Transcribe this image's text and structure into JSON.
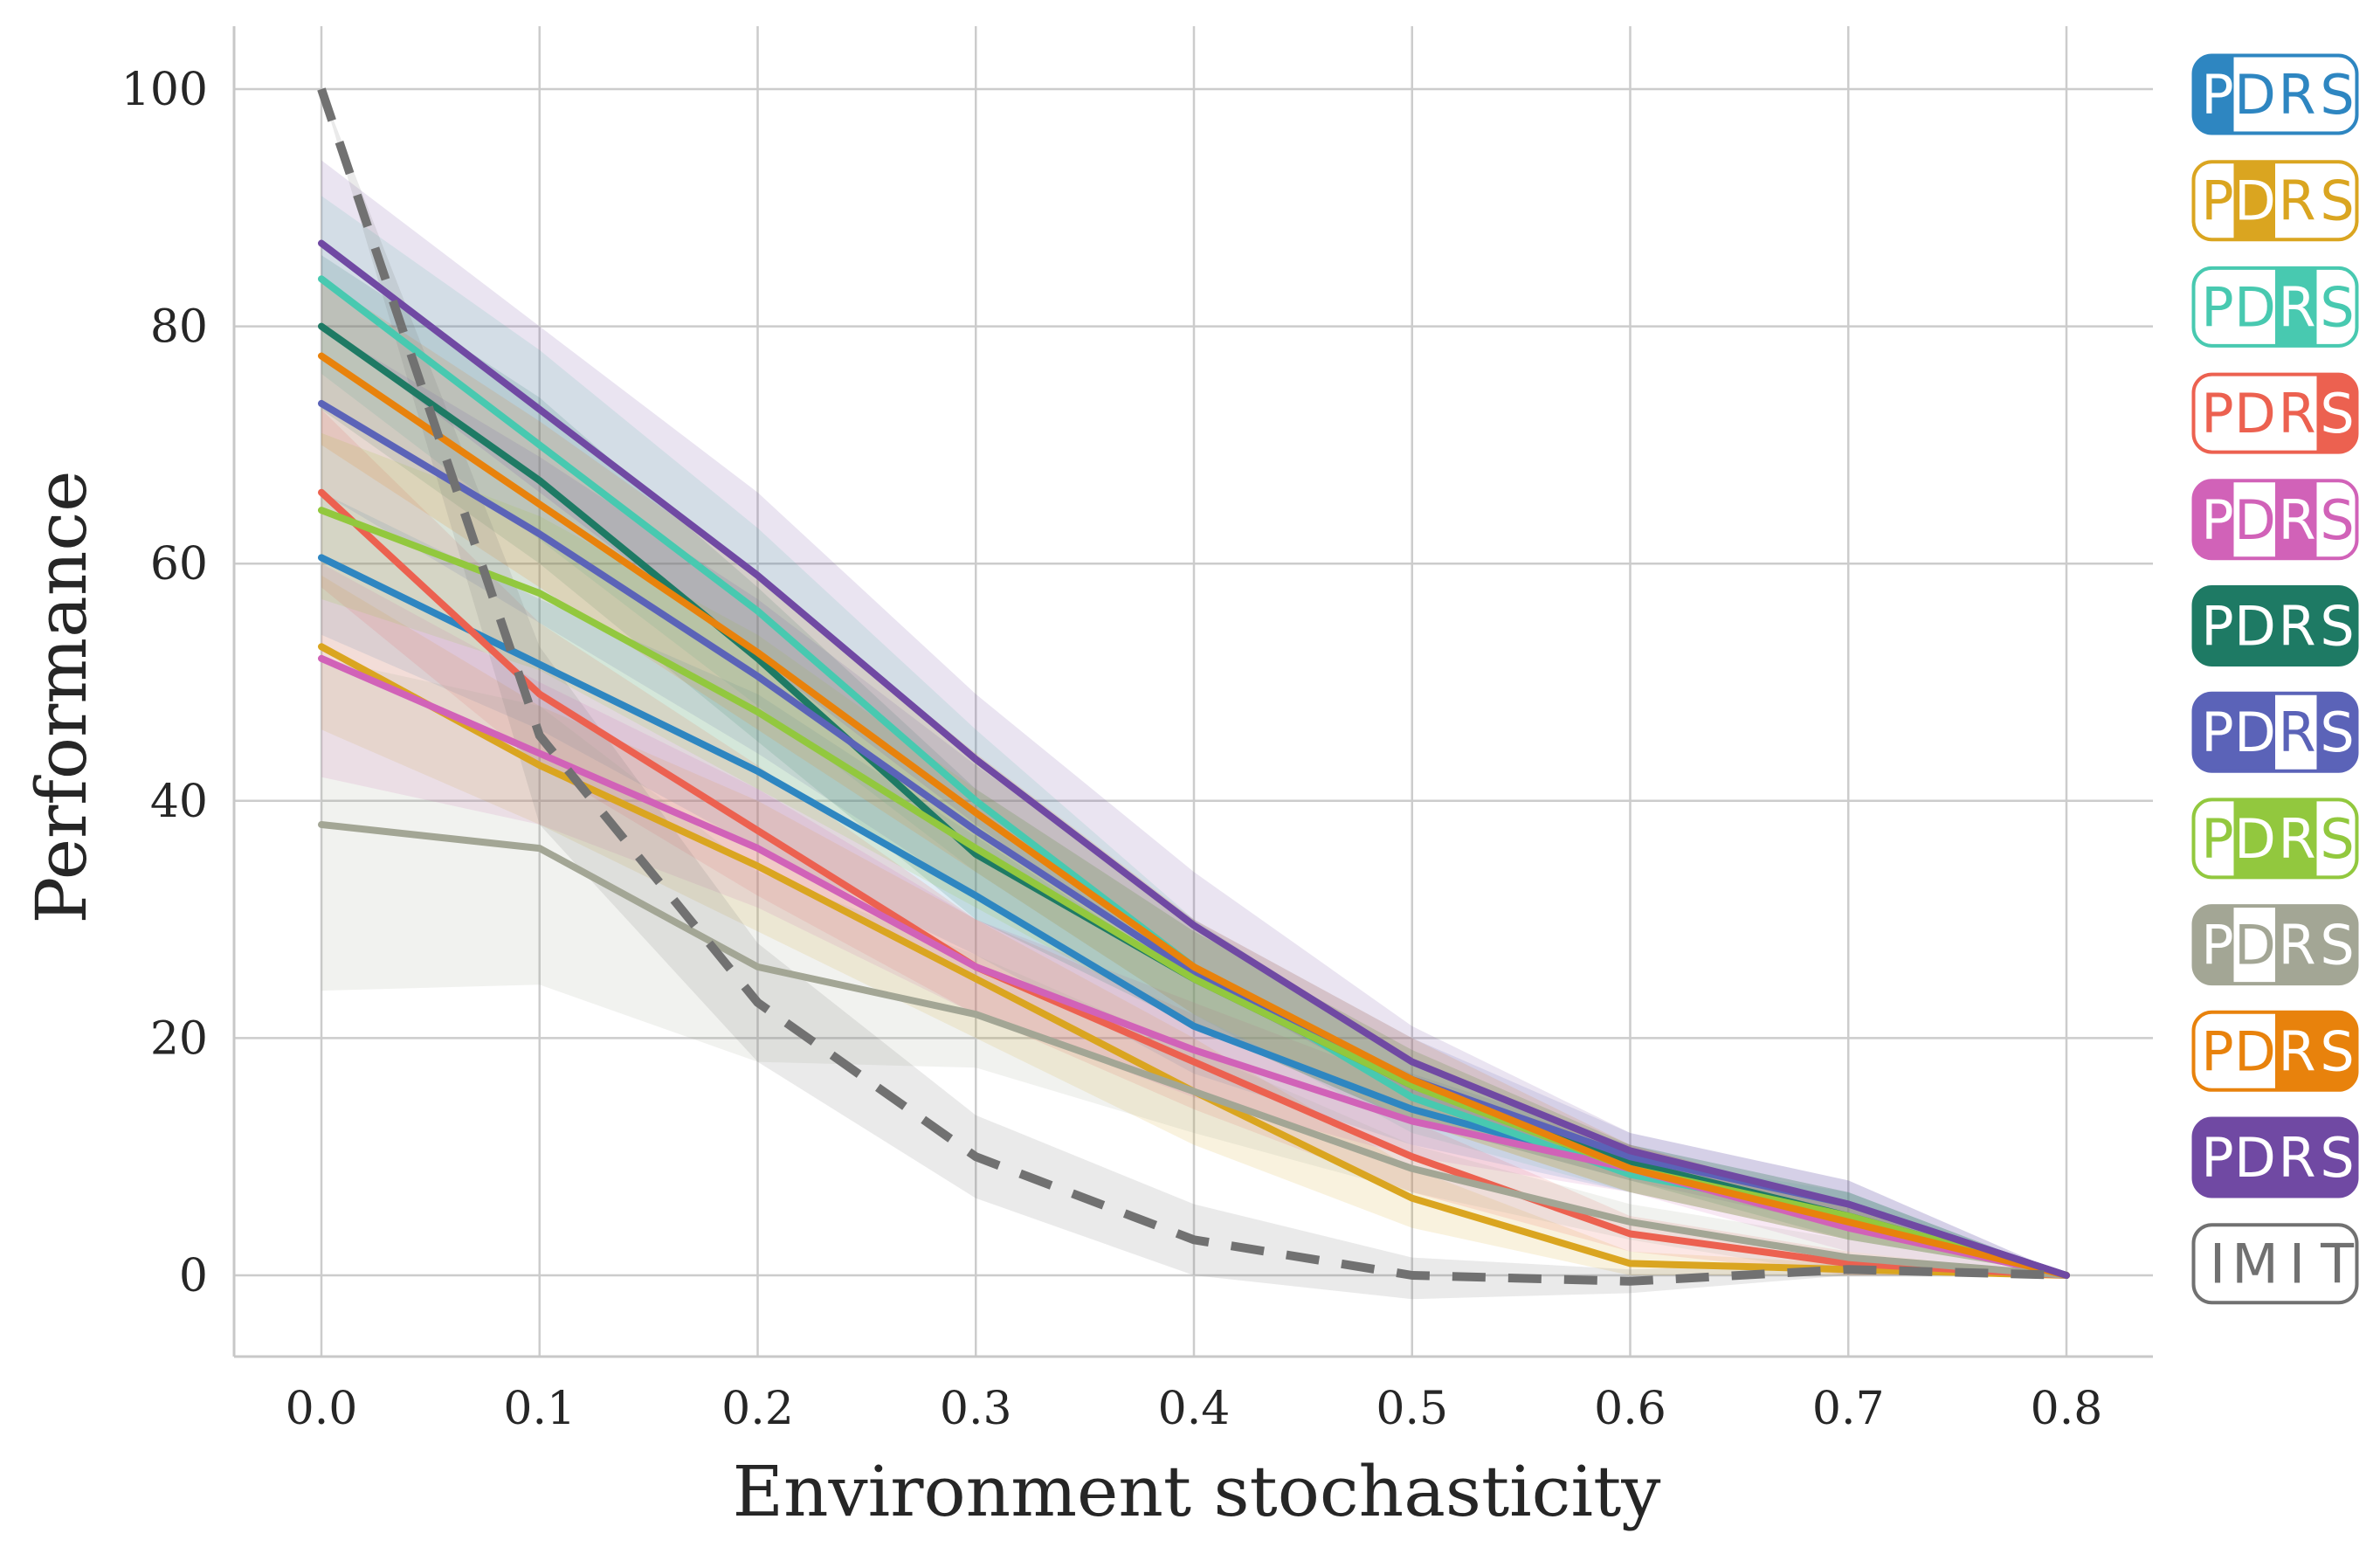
{
  "chart_data": {
    "type": "line",
    "title": "",
    "xlabel": "Environment stochasticity",
    "ylabel": "Performance",
    "x": [
      0.0,
      0.1,
      0.2,
      0.3,
      0.4,
      0.5,
      0.6,
      0.7,
      0.8
    ],
    "x_tick_labels": [
      "0.0",
      "0.1",
      "0.2",
      "0.3",
      "0.4",
      "0.5",
      "0.6",
      "0.7",
      "0.8"
    ],
    "y_ticks": [
      0,
      20,
      40,
      60,
      80,
      100
    ],
    "y_tick_labels": [
      "0",
      "20",
      "40",
      "60",
      "80",
      "100"
    ],
    "xlim": [
      -0.04,
      0.84
    ],
    "ylim": [
      -7,
      105
    ],
    "grid": true,
    "legend_position": "right",
    "series": [
      {
        "name": "PDRS",
        "highlight": [
          0
        ],
        "color": "#2e86c1",
        "values": [
          60.5,
          51.5,
          42.5,
          32,
          21,
          14,
          9,
          5,
          0
        ],
        "lower": [
          54,
          46,
          36,
          27,
          17,
          11,
          7,
          3,
          0
        ],
        "upper": [
          66,
          57,
          49,
          37,
          25,
          17,
          11,
          7,
          0
        ]
      },
      {
        "name": "PDRS",
        "highlight": [
          1
        ],
        "color": "#daa520",
        "values": [
          53,
          43,
          34.5,
          25,
          15.5,
          6.5,
          1,
          0.5,
          0
        ],
        "lower": [
          46,
          38,
          29,
          20,
          11,
          4,
          0,
          0,
          0
        ],
        "upper": [
          59,
          48,
          40,
          30,
          20,
          9,
          2,
          1,
          0
        ]
      },
      {
        "name": "PDRS",
        "highlight": [
          2
        ],
        "color": "#48c9b0",
        "values": [
          84,
          70,
          56,
          40,
          26,
          15,
          8.5,
          5,
          0
        ],
        "lower": [
          76,
          62,
          48,
          34,
          22,
          12,
          7,
          3,
          0
        ],
        "upper": [
          91,
          78,
          63,
          46,
          30,
          18,
          10,
          7,
          0
        ]
      },
      {
        "name": "PDRS",
        "highlight": [
          3
        ],
        "color": "#ec6150",
        "values": [
          66,
          49,
          37.5,
          26,
          18,
          10,
          3.5,
          1,
          0
        ],
        "lower": [
          58,
          43,
          32,
          22,
          14,
          7,
          2,
          0,
          0
        ],
        "upper": [
          73,
          55,
          43,
          30,
          22,
          13,
          5,
          2,
          0
        ]
      },
      {
        "name": "PDRS",
        "highlight": [
          0,
          2
        ],
        "color": "#d162b8",
        "values": [
          52,
          44,
          36,
          26,
          19,
          13,
          9,
          4,
          0
        ],
        "lower": [
          42,
          38,
          31,
          22,
          15,
          10,
          7,
          2,
          0
        ],
        "upper": [
          60,
          50,
          41,
          30,
          23,
          16,
          11,
          6,
          0
        ]
      },
      {
        "name": "PDRS",
        "highlight": [
          0,
          1,
          2,
          3
        ],
        "color": "#1e7a64",
        "values": [
          80,
          67,
          52,
          35.5,
          25,
          16,
          9.5,
          5,
          0
        ],
        "lower": [
          73,
          60,
          45,
          30,
          21,
          13,
          8,
          3,
          0
        ],
        "upper": [
          86,
          74,
          58,
          41,
          29,
          19,
          11,
          7,
          0
        ]
      },
      {
        "name": "PDRS",
        "highlight": [
          0,
          1,
          3
        ],
        "color": "#5b63b8",
        "values": [
          73.5,
          62.5,
          50.5,
          37.5,
          25.5,
          16.5,
          10,
          6,
          0
        ],
        "lower": [
          66,
          55,
          44,
          32,
          21,
          13,
          8,
          4,
          0
        ],
        "upper": [
          80,
          69,
          57,
          43,
          30,
          20,
          12,
          8,
          0
        ]
      },
      {
        "name": "PDRS",
        "highlight": [
          1,
          2
        ],
        "color": "#92c83e",
        "values": [
          64.5,
          57.5,
          47.5,
          36,
          25,
          16,
          9,
          5,
          0
        ],
        "lower": [
          57,
          51,
          41,
          31,
          21,
          13,
          7,
          3,
          0
        ],
        "upper": [
          71,
          64,
          54,
          41,
          29,
          19,
          11,
          7,
          0
        ]
      },
      {
        "name": "PDRS",
        "highlight": [
          0,
          2,
          3
        ],
        "color": "#a3a695",
        "values": [
          38,
          36,
          26,
          22,
          15.5,
          9,
          4.5,
          1.5,
          0
        ],
        "lower": [
          24,
          24.5,
          18,
          17.5,
          12,
          7,
          3,
          0,
          0
        ],
        "upper": [
          52,
          48,
          34,
          27,
          19,
          11,
          6,
          3,
          0
        ]
      },
      {
        "name": "PDRS",
        "highlight": [
          2,
          3
        ],
        "color": "#e8820c",
        "values": [
          77.5,
          65,
          52.5,
          39,
          26,
          16.5,
          9,
          4.5,
          0
        ],
        "lower": [
          70,
          58,
          46,
          34,
          22,
          13,
          7,
          3,
          0
        ],
        "upper": [
          84,
          72,
          59,
          44,
          30,
          20,
          11,
          6,
          0
        ]
      },
      {
        "name": "PDRS",
        "highlight": [
          0,
          1,
          2,
          3
        ],
        "color": "#7049a3",
        "values": [
          87,
          73,
          59,
          43.5,
          29.5,
          18,
          10.5,
          6,
          0
        ],
        "lower": [
          80,
          66,
          52,
          38,
          25,
          15,
          9,
          4,
          0
        ],
        "upper": [
          94,
          80,
          66,
          49,
          34,
          21,
          12,
          8,
          0
        ]
      },
      {
        "name": "IMIT",
        "highlight": [],
        "color": "#717171",
        "dashed": true,
        "values": [
          100,
          45.5,
          23,
          10,
          3,
          0,
          -0.5,
          0.5,
          0
        ],
        "lower": [
          100,
          38,
          18,
          6.5,
          0,
          -2,
          -1.5,
          0,
          0
        ],
        "upper": [
          100,
          53,
          28,
          13.5,
          6,
          1.5,
          0.5,
          1,
          0
        ]
      }
    ]
  }
}
